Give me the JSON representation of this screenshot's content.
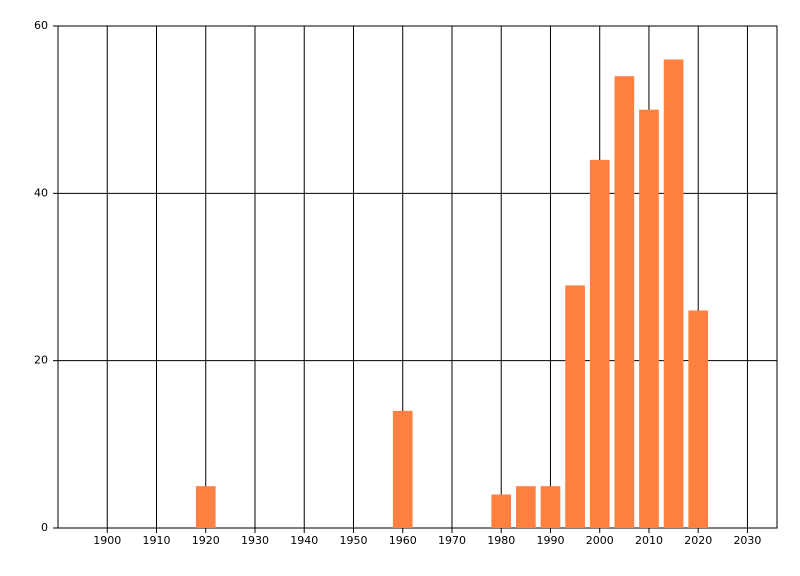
{
  "chart_data": {
    "type": "bar",
    "x": [
      1920,
      1960,
      1980,
      1985,
      1990,
      1995,
      2000,
      2005,
      2010,
      2015,
      2020
    ],
    "values": [
      5,
      14,
      4,
      5,
      5,
      29,
      44,
      54,
      50,
      56,
      26
    ],
    "color": "#ff8040",
    "xlim": [
      1890,
      2036
    ],
    "xticks": [
      1900,
      1910,
      1920,
      1930,
      1940,
      1950,
      1960,
      1970,
      1980,
      1990,
      2000,
      2010,
      2020,
      2030
    ],
    "ylim": [
      0,
      60
    ],
    "yticks": [
      0,
      20,
      40,
      60
    ],
    "grid": true
  }
}
